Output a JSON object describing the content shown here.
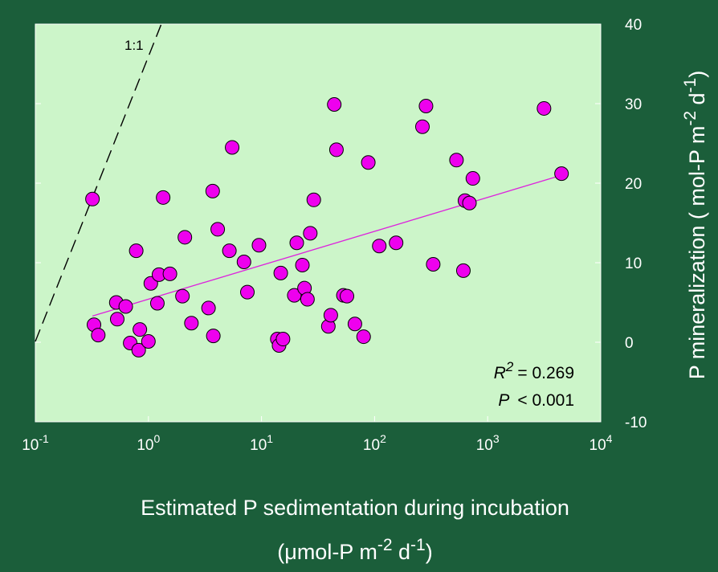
{
  "colors": {
    "background": "#1b5e3a",
    "plot_area": "#ccf5c9",
    "points": "#ee00ee",
    "point_edge": "#000000",
    "fit_line": "#dd22dd",
    "identity_line": "#000000"
  },
  "chart_data": {
    "type": "scatter",
    "x_scale": "log",
    "xlim": [
      0.1,
      10000
    ],
    "ylim": [
      -10,
      40
    ],
    "x_ticks": [
      {
        "base": "10",
        "exp": "-1"
      },
      {
        "base": "10",
        "exp": "0"
      },
      {
        "base": "10",
        "exp": "1"
      },
      {
        "base": "10",
        "exp": "2"
      },
      {
        "base": "10",
        "exp": "3"
      },
      {
        "base": "10",
        "exp": "4"
      }
    ],
    "y_ticks": [
      "-10",
      "0",
      "10",
      "20",
      "30",
      "40"
    ],
    "y_axis_side": "right",
    "grid": false,
    "xlabel_line1": "Estimated P sedimentation during incubation",
    "xlabel_line2": {
      "prefix": "(μmol-P m",
      "sup1": "-2",
      "mid": " d",
      "sup2": "-1",
      "suffix": ")"
    },
    "ylabel": {
      "prefix": "P mineralization (   mol-P m",
      "sup1": "-2",
      "mid": " d",
      "sup2": "-1",
      "suffix": ")"
    },
    "identity_label": "1:1",
    "identity_line": {
      "x": [
        0.1,
        1.3
      ],
      "y": [
        0.1,
        40
      ]
    },
    "fit_line": {
      "x": [
        0.32,
        4500
      ],
      "y": [
        3.3,
        21.0
      ]
    },
    "stats": {
      "r_symbol": "R",
      "r_exp": "2",
      "r_value": "= 0.269",
      "p_symbol": "P",
      "p_value": "< 0.001"
    },
    "points": [
      {
        "x": 0.32,
        "y": 18.0
      },
      {
        "x": 0.33,
        "y": 2.2
      },
      {
        "x": 0.36,
        "y": 0.9
      },
      {
        "x": 0.52,
        "y": 5.0
      },
      {
        "x": 0.53,
        "y": 2.9
      },
      {
        "x": 0.63,
        "y": 4.5
      },
      {
        "x": 0.69,
        "y": -0.1
      },
      {
        "x": 0.78,
        "y": 11.5
      },
      {
        "x": 0.82,
        "y": -1.0
      },
      {
        "x": 0.84,
        "y": 1.6
      },
      {
        "x": 1.0,
        "y": 0.1
      },
      {
        "x": 1.05,
        "y": 7.4
      },
      {
        "x": 1.2,
        "y": 4.9
      },
      {
        "x": 1.24,
        "y": 8.5
      },
      {
        "x": 1.35,
        "y": 18.2
      },
      {
        "x": 1.55,
        "y": 8.6
      },
      {
        "x": 2.0,
        "y": 5.8
      },
      {
        "x": 2.1,
        "y": 13.2
      },
      {
        "x": 2.4,
        "y": 2.4
      },
      {
        "x": 3.4,
        "y": 4.3
      },
      {
        "x": 3.7,
        "y": 19.0
      },
      {
        "x": 3.75,
        "y": 0.8
      },
      {
        "x": 4.1,
        "y": 14.2
      },
      {
        "x": 5.2,
        "y": 11.5
      },
      {
        "x": 5.5,
        "y": 24.5
      },
      {
        "x": 7.0,
        "y": 10.1
      },
      {
        "x": 7.5,
        "y": 6.3
      },
      {
        "x": 9.5,
        "y": 12.2
      },
      {
        "x": 13.8,
        "y": 0.4
      },
      {
        "x": 14.3,
        "y": -0.4
      },
      {
        "x": 14.8,
        "y": 8.7
      },
      {
        "x": 15.5,
        "y": 0.4
      },
      {
        "x": 19.5,
        "y": 5.9
      },
      {
        "x": 20.5,
        "y": 12.5
      },
      {
        "x": 23.0,
        "y": 9.7
      },
      {
        "x": 24.0,
        "y": 6.8
      },
      {
        "x": 25.5,
        "y": 5.4
      },
      {
        "x": 27.0,
        "y": 13.7
      },
      {
        "x": 29.0,
        "y": 17.9
      },
      {
        "x": 39.0,
        "y": 2.0
      },
      {
        "x": 41.0,
        "y": 3.4
      },
      {
        "x": 44.0,
        "y": 29.9
      },
      {
        "x": 46.0,
        "y": 24.2
      },
      {
        "x": 53.0,
        "y": 5.9
      },
      {
        "x": 57.0,
        "y": 5.8
      },
      {
        "x": 67.0,
        "y": 2.3
      },
      {
        "x": 80.0,
        "y": 0.7
      },
      {
        "x": 88.0,
        "y": 22.6
      },
      {
        "x": 110.0,
        "y": 12.1
      },
      {
        "x": 155.0,
        "y": 12.5
      },
      {
        "x": 265.0,
        "y": 27.1
      },
      {
        "x": 285.0,
        "y": 29.7
      },
      {
        "x": 330.0,
        "y": 9.8
      },
      {
        "x": 530.0,
        "y": 22.9
      },
      {
        "x": 610.0,
        "y": 9.0
      },
      {
        "x": 630.0,
        "y": 17.8
      },
      {
        "x": 690.0,
        "y": 17.5
      },
      {
        "x": 740.0,
        "y": 20.6
      },
      {
        "x": 3150.0,
        "y": 29.4
      },
      {
        "x": 4500.0,
        "y": 21.2
      }
    ]
  }
}
